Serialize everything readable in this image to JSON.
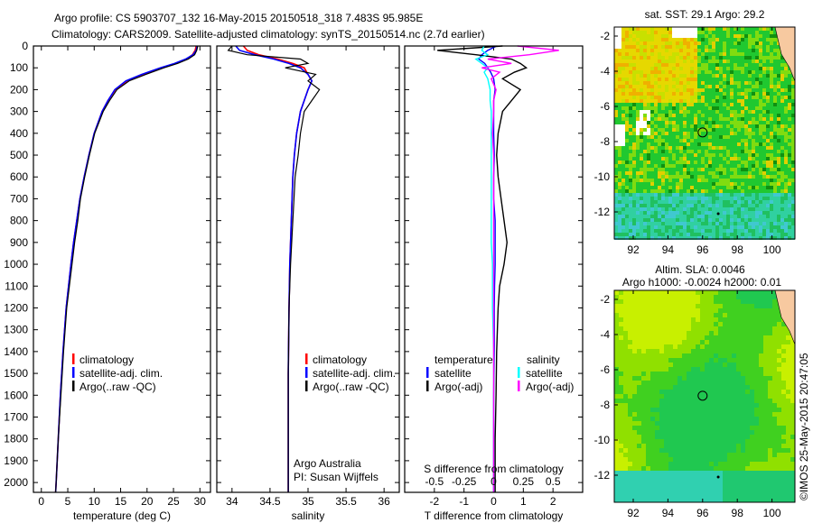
{
  "title": {
    "line1": "Argo profile: CS 5903707_132 16-May-2015 20150518_318 7.483S 95.985E",
    "line2": "Climatology: CARS2009. Satellite-adjusted climatology: synTS_20150514.nc (2.7d earlier)"
  },
  "colors": {
    "climatology": "#ff0000",
    "satellite": "#0000ff",
    "argo": "#000000",
    "sal_satellite": "#00ffff",
    "sal_argo": "#ff00ff",
    "land": "#f7c9a0"
  },
  "chart_data": [
    {
      "type": "line",
      "name": "temperature-profile",
      "xlabel": "temperature (deg C)",
      "ylabel": "",
      "xlim": [
        -1.5,
        32
      ],
      "ylim": [
        2045,
        0
      ],
      "xticks": [
        "0",
        "5",
        "10",
        "15",
        "20",
        "25",
        "30"
      ],
      "yticks": [
        "0",
        "100",
        "200",
        "300",
        "400",
        "500",
        "600",
        "700",
        "800",
        "900",
        "1000",
        "1100",
        "1200",
        "1300",
        "1400",
        "1500",
        "1600",
        "1700",
        "1800",
        "1900",
        "2000"
      ],
      "depth": [
        0,
        20,
        40,
        60,
        80,
        100,
        130,
        160,
        200,
        250,
        300,
        400,
        500,
        600,
        700,
        800,
        900,
        1000,
        1200,
        1400,
        1600,
        1800,
        2000,
        2045
      ],
      "series": [
        {
          "name": "climatology",
          "values": [
            29.3,
            29.1,
            28.6,
            27.5,
            25.5,
            22.8,
            19.2,
            16.2,
            14.0,
            12.6,
            11.5,
            10.0,
            9.0,
            8.1,
            7.3,
            6.7,
            6.1,
            5.6,
            4.7,
            4.1,
            3.6,
            3.2,
            2.8,
            2.7
          ]
        },
        {
          "name": "satellite-adj. clim.",
          "values": [
            29.5,
            29.3,
            28.7,
            27.3,
            25.2,
            22.5,
            19.0,
            16.0,
            13.9,
            12.6,
            11.5,
            10.0,
            9.0,
            8.1,
            7.3,
            6.7,
            6.1,
            5.6,
            4.7,
            4.1,
            3.6,
            3.2,
            2.8,
            2.7
          ]
        },
        {
          "name": "Argo(..raw -QC)",
          "values": [
            29.6,
            29.4,
            29.0,
            27.8,
            25.8,
            23.2,
            19.8,
            16.6,
            14.3,
            12.9,
            11.7,
            10.1,
            9.1,
            8.2,
            7.4,
            6.9,
            6.3,
            5.8,
            4.8,
            4.2,
            3.7,
            3.2,
            2.8,
            2.7
          ]
        }
      ],
      "legend": [
        "climatology",
        "satellite-adj. clim.",
        "Argo(..raw -QC)"
      ]
    },
    {
      "type": "line",
      "name": "salinity-profile",
      "xlabel": "salinity",
      "xlim": [
        33.8,
        36.2
      ],
      "ylim": [
        2045,
        0
      ],
      "xticks": [
        "34",
        "34.5",
        "35",
        "35.5",
        "36"
      ],
      "depth": [
        0,
        20,
        40,
        60,
        80,
        100,
        130,
        160,
        200,
        250,
        300,
        400,
        500,
        600,
        800,
        1000,
        1200,
        1500,
        1800,
        2045
      ],
      "series": [
        {
          "name": "climatology",
          "values": [
            34.15,
            34.2,
            34.35,
            34.6,
            34.8,
            34.95,
            35.0,
            35.05,
            35.0,
            34.95,
            34.9,
            34.85,
            34.82,
            34.8,
            34.78,
            34.76,
            34.75,
            34.74,
            34.74,
            34.74
          ]
        },
        {
          "name": "satellite-adj. clim.",
          "values": [
            34.05,
            34.1,
            34.3,
            34.55,
            34.75,
            34.9,
            35.0,
            35.05,
            35.0,
            34.95,
            34.9,
            34.85,
            34.82,
            34.8,
            34.78,
            34.76,
            34.75,
            34.74,
            34.74,
            34.74
          ]
        },
        {
          "name": "Argo(..raw -QC)",
          "values": [
            34.0,
            33.95,
            34.2,
            34.9,
            35.0,
            34.7,
            35.1,
            35.0,
            35.15,
            35.05,
            34.95,
            34.9,
            34.87,
            34.83,
            34.8,
            34.77,
            34.75,
            34.74,
            34.74,
            34.74
          ]
        }
      ],
      "legend": [
        "climatology",
        "satellite-adj. clim.",
        "Argo(..raw -QC)"
      ],
      "annotation": [
        "Argo Australia",
        "PI: Susan Wijffels"
      ]
    },
    {
      "type": "line",
      "name": "difference-profile",
      "xlabel": "T difference from climatology",
      "xlim": [
        -3,
        3
      ],
      "x2label": "S difference from climatology",
      "x2lim": [
        -0.75,
        0.75
      ],
      "xticks": [
        "-2",
        "-1",
        "0",
        "1",
        "2"
      ],
      "x2ticks": [
        "-0.5",
        "-0.25",
        "0",
        "0.25",
        "0.5"
      ],
      "depth": [
        0,
        20,
        40,
        60,
        80,
        100,
        120,
        150,
        200,
        250,
        300,
        400,
        500,
        600,
        700,
        800,
        900,
        1000,
        1100,
        1200,
        1400,
        1600,
        1800,
        2000,
        2045
      ],
      "series": [
        {
          "name": "T satellite",
          "axis": "T",
          "values": [
            0.1,
            -0.2,
            -0.4,
            -0.5,
            -0.3,
            -0.2,
            -0.1,
            0,
            0.05,
            0,
            0,
            0,
            0.02,
            0,
            0,
            0.05,
            0.05,
            0.05,
            0.03,
            0.02,
            0.02,
            0,
            0,
            0,
            0
          ]
        },
        {
          "name": "T Argo(-adj)",
          "axis": "T",
          "values": [
            0.3,
            -1.9,
            -0.6,
            0.6,
            0.9,
            1.1,
            0.7,
            0.3,
            0.9,
            0.6,
            0.3,
            0.15,
            0.1,
            0.15,
            0.25,
            0.35,
            0.45,
            0.35,
            0.2,
            0.15,
            0.1,
            0.08,
            0.05,
            0.05,
            0.05
          ]
        },
        {
          "name": "S satellite",
          "axis": "S",
          "values": [
            -0.08,
            -0.1,
            -0.05,
            -0.15,
            -0.1,
            -0.05,
            -0.08,
            -0.05,
            -0.03,
            -0.03,
            -0.02,
            -0.02,
            -0.02,
            -0.02,
            -0.02,
            -0.02,
            -0.02,
            -0.01,
            -0.01,
            -0.01,
            0,
            0,
            0,
            0,
            0
          ]
        },
        {
          "name": "S Argo(-adj)",
          "axis": "S",
          "values": [
            0.2,
            0.55,
            0.3,
            -0.05,
            0.15,
            -0.1,
            0.05,
            -0.02,
            0.02,
            0,
            0,
            -0.01,
            0,
            0,
            0,
            0,
            0,
            0,
            0,
            0,
            0,
            0,
            0,
            0,
            0
          ]
        }
      ],
      "legend": {
        "temperature": "temperature",
        "salinity": "salinity",
        "items": [
          "satellite",
          "Argo(-adj)",
          "satellite",
          "Argo(-adj)"
        ]
      }
    }
  ],
  "maps": [
    {
      "name": "sst-map",
      "title": "sat. SST: 29.1  Argo: 29.2",
      "xticks": [
        "92",
        "94",
        "96",
        "98",
        "100"
      ],
      "yticks": [
        "-2",
        "-4",
        "-6",
        "-8",
        "-10",
        "-12"
      ]
    },
    {
      "name": "sla-map",
      "title1": "Altim. SLA: 0.0046",
      "title2": "Argo h1000: -0.0024 h2000: 0.01",
      "xticks": [
        "92",
        "94",
        "96",
        "98",
        "100"
      ],
      "yticks": [
        "-2",
        "-4",
        "-6",
        "-8",
        "-10",
        "-12"
      ]
    }
  ],
  "credit": "©IMOS 25-May-2015 20:47:05"
}
